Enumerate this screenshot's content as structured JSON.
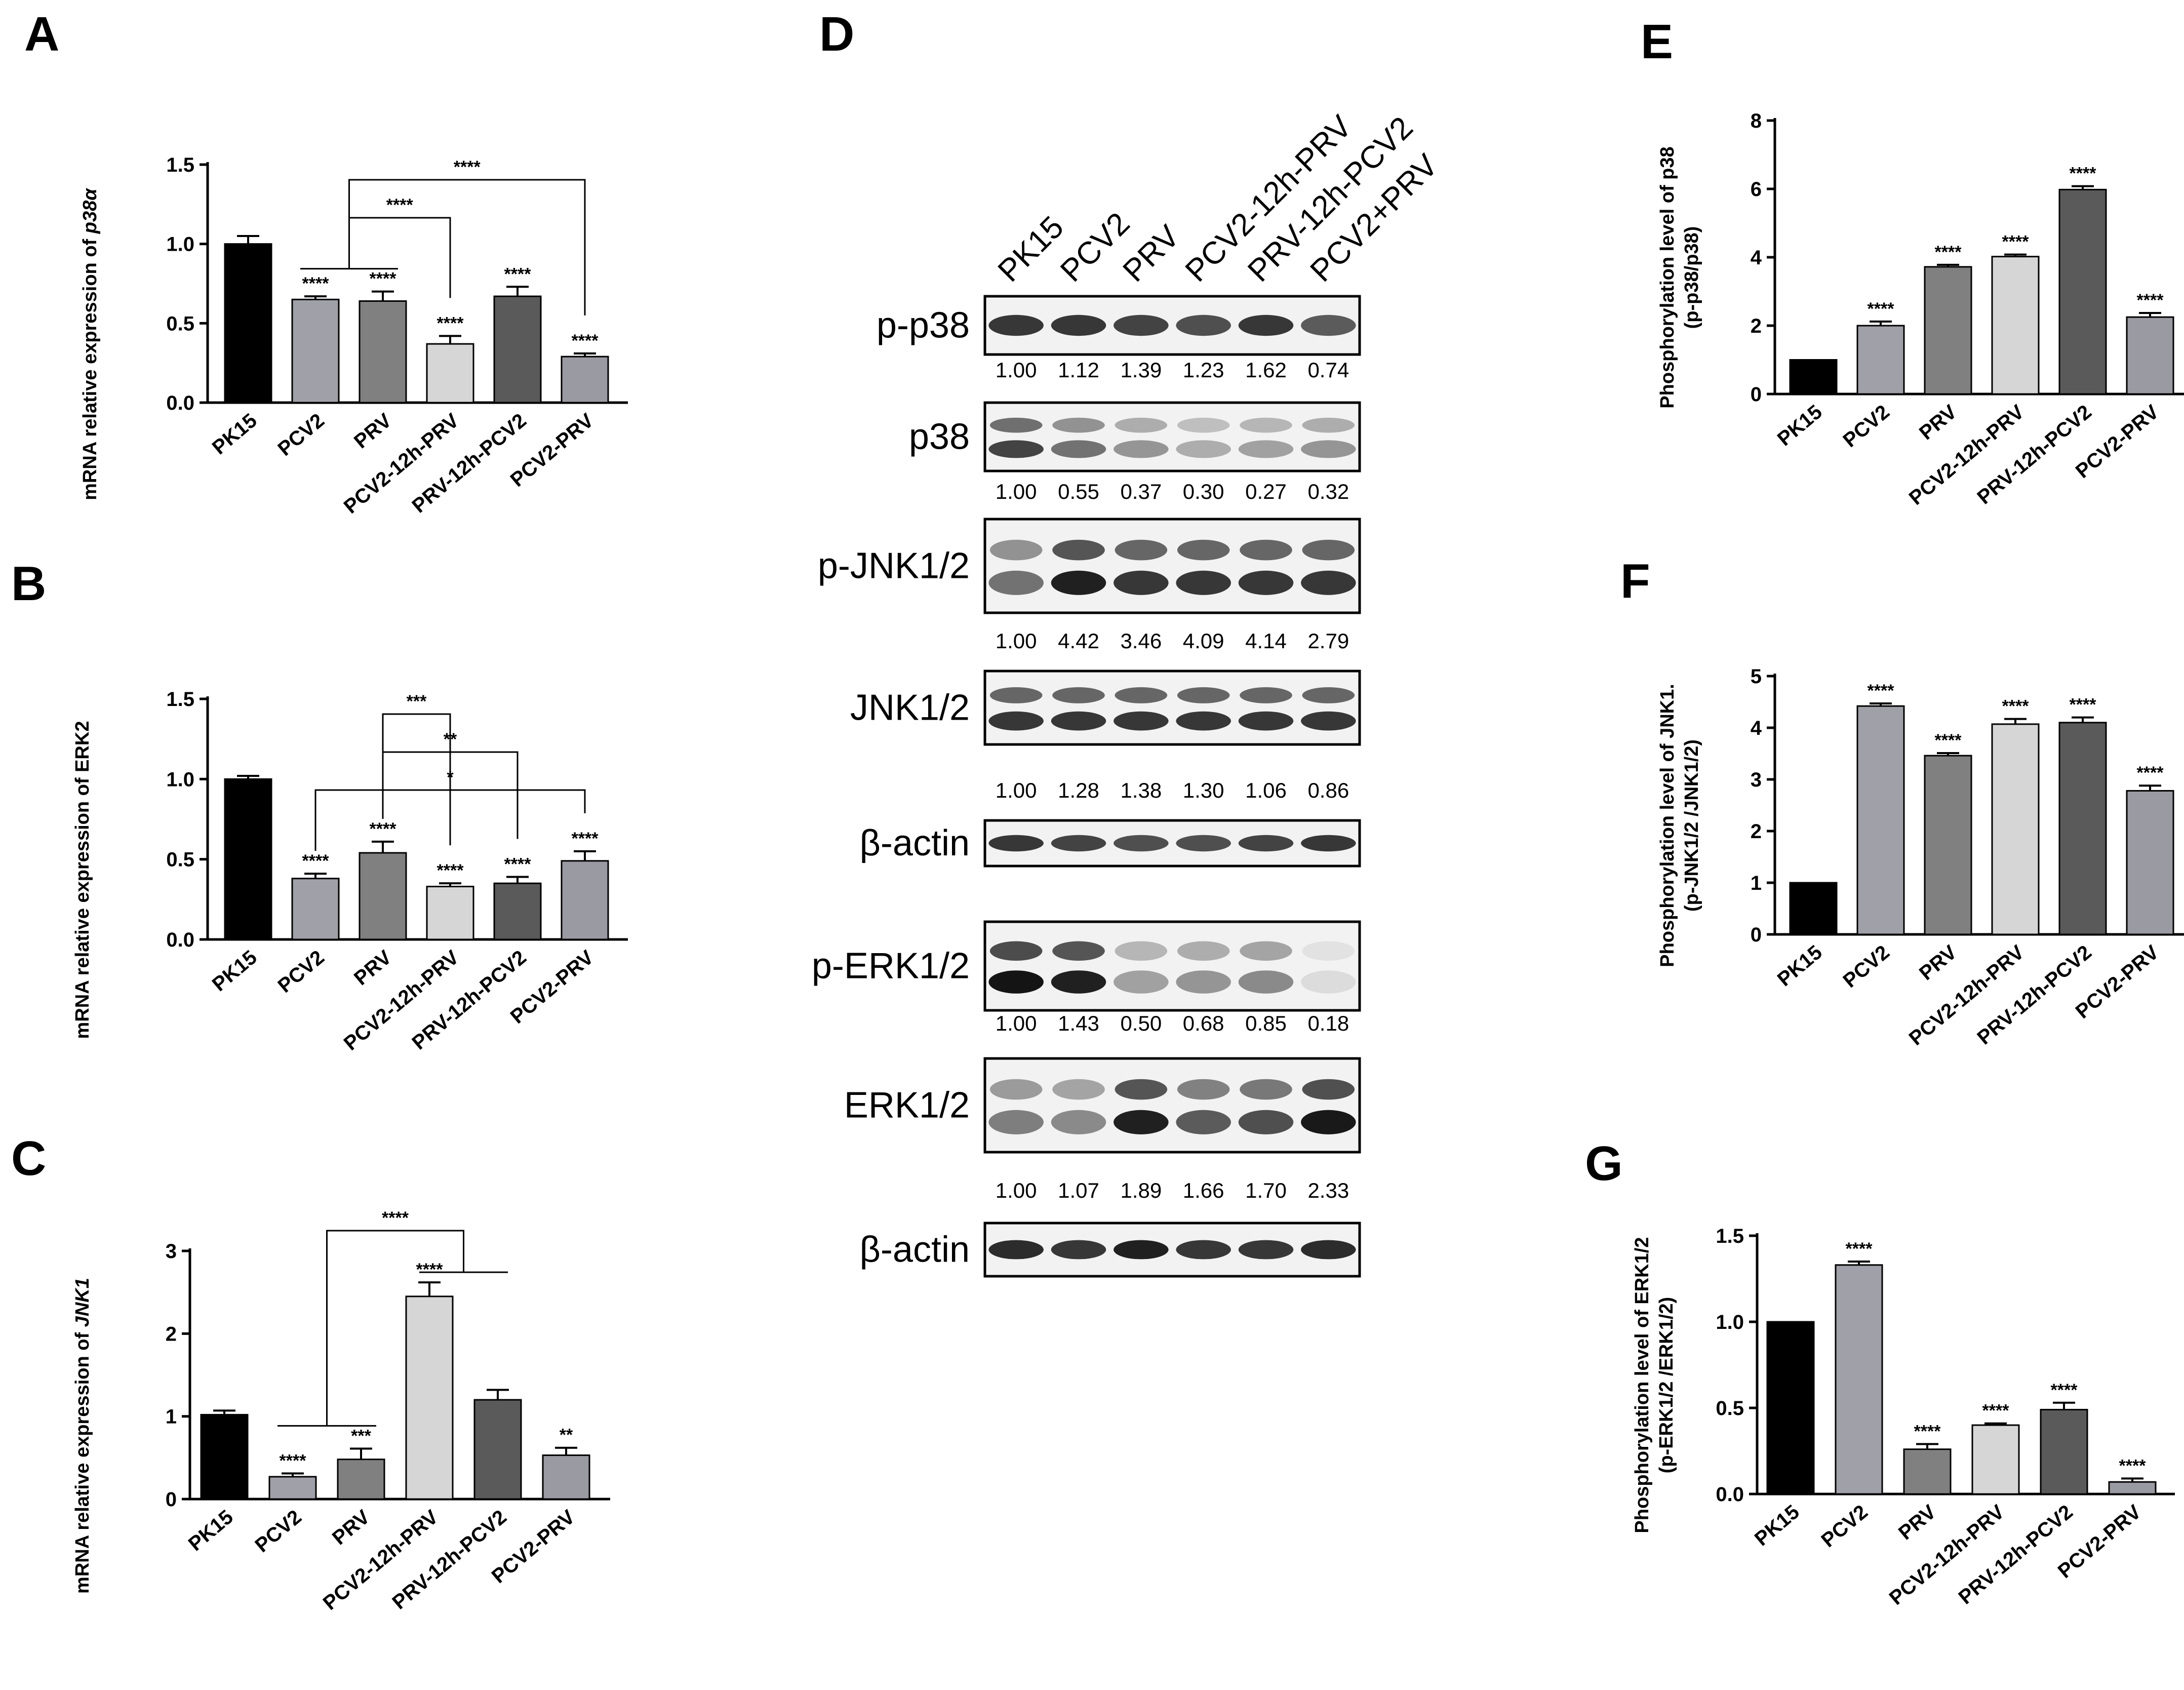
{
  "colors": {
    "PK15": "#000000",
    "PCV2": "#a0a0a8",
    "PRV": "#808080",
    "PCV2-12h-PRV": "#d6d6d6",
    "PRV-12h-PCV2": "#5a5a5a",
    "PCV2-PRV": "#9a9aa2",
    "PCV2+PRV": "#9a9aa2"
  },
  "chart_data": [
    {
      "id": "A",
      "panel": "A",
      "type": "bar",
      "categories": [
        "PK15",
        "PCV2",
        "PRV",
        "PCV2-12h-PRV",
        "PRV-12h-PCV2",
        "PCV2-PRV"
      ],
      "values": [
        1.0,
        0.65,
        0.64,
        0.37,
        0.67,
        0.29
      ],
      "errors": [
        0.05,
        0.02,
        0.06,
        0.05,
        0.06,
        0.02
      ],
      "sig": [
        "",
        "****",
        "****",
        "****",
        "****",
        "****"
      ],
      "ylabel_plain": "mRNA relative expression of ",
      "ylabel_italic": "p38α",
      "ylim": [
        0,
        1.5
      ],
      "yticks": [
        "0.0",
        "0.5",
        "1.0",
        "1.5"
      ],
      "ytick_values": [
        0,
        0.5,
        1,
        1.5
      ],
      "brackets": [
        {
          "from": [
            1,
            2
          ],
          "to": 3,
          "label": "****"
        },
        {
          "from": [
            1,
            2
          ],
          "to": 5,
          "label": "****"
        }
      ]
    },
    {
      "id": "B",
      "panel": "B",
      "type": "bar",
      "categories": [
        "PK15",
        "PCV2",
        "PRV",
        "PCV2-12h-PRV",
        "PRV-12h-PCV2",
        "PCV2-PRV"
      ],
      "values": [
        1.0,
        0.38,
        0.54,
        0.33,
        0.35,
        0.49
      ],
      "errors": [
        0.02,
        0.03,
        0.07,
        0.02,
        0.04,
        0.06
      ],
      "sig": [
        "",
        "****",
        "****",
        "****",
        "****",
        "****"
      ],
      "ylabel_plain": "mRNA relative expression of ERK2",
      "ylabel_italic": "",
      "ylim": [
        0,
        1.5
      ],
      "yticks": [
        "0.0",
        "0.5",
        "1.0",
        "1.5"
      ],
      "ytick_values": [
        0,
        0.5,
        1,
        1.5
      ],
      "brackets": [
        {
          "from": [
            1
          ],
          "to": 5,
          "label": "*"
        },
        {
          "from": [
            2
          ],
          "to": 4,
          "label": "**"
        },
        {
          "from": [
            2
          ],
          "to": 3,
          "label": "***"
        }
      ]
    },
    {
      "id": "C",
      "panel": "C",
      "type": "bar",
      "categories": [
        "PK15",
        "PCV2",
        "PRV",
        "PCV2-12h-PRV",
        "PRV-12h-PCV2",
        "PCV2-PRV"
      ],
      "values": [
        1.02,
        0.27,
        0.48,
        2.45,
        1.2,
        0.53
      ],
      "errors": [
        0.05,
        0.04,
        0.13,
        0.17,
        0.12,
        0.09
      ],
      "sig": [
        "",
        "****",
        "***",
        "****",
        "",
        "**"
      ],
      "ylabel_plain": "mRNA relative expression of ",
      "ylabel_italic": "JNK1",
      "ylim": [
        0,
        3
      ],
      "yticks": [
        "0",
        "1",
        "2",
        "3"
      ],
      "ytick_values": [
        0,
        1,
        2,
        3
      ],
      "brackets": [
        {
          "from": [
            1,
            2
          ],
          "to_group": [
            3,
            4
          ],
          "label": "****"
        }
      ]
    },
    {
      "id": "E",
      "panel": "E",
      "type": "bar",
      "categories": [
        "PK15",
        "PCV2",
        "PRV",
        "PCV2-12h-PRV",
        "PRV-12h-PCV2",
        "PCV2-PRV"
      ],
      "values": [
        1.0,
        2.0,
        3.72,
        4.02,
        5.98,
        2.25
      ],
      "errors": [
        0.0,
        0.12,
        0.06,
        0.06,
        0.1,
        0.12
      ],
      "sig": [
        "",
        "****",
        "****",
        "****",
        "****",
        "****"
      ],
      "ylabel_line1": "Phosphorylation level of p38",
      "ylabel_line2": "(p-p38/p38)",
      "ylim": [
        0,
        8
      ],
      "yticks": [
        "0",
        "2",
        "4",
        "6",
        "8"
      ],
      "ytick_values": [
        0,
        2,
        4,
        6,
        8
      ],
      "brackets": []
    },
    {
      "id": "F",
      "panel": "F",
      "type": "bar",
      "categories": [
        "PK15",
        "PCV2",
        "PRV",
        "PCV2-12h-PRV",
        "PRV-12h-PCV2",
        "PCV2-PRV"
      ],
      "values": [
        1.0,
        4.42,
        3.46,
        4.07,
        4.1,
        2.78
      ],
      "errors": [
        0.0,
        0.05,
        0.05,
        0.1,
        0.1,
        0.1
      ],
      "sig": [
        "",
        "****",
        "****",
        "****",
        "****",
        "****"
      ],
      "ylabel_line1": "Phosphorylation level of JNK1.",
      "ylabel_line2": "(p-JNK1/2 /JNK1/2)",
      "ylim": [
        0,
        5
      ],
      "yticks": [
        "0",
        "1",
        "2",
        "3",
        "4",
        "5"
      ],
      "ytick_values": [
        0,
        1,
        2,
        3,
        4,
        5
      ],
      "brackets": []
    },
    {
      "id": "G",
      "panel": "G",
      "type": "bar",
      "categories": [
        "PK15",
        "PCV2",
        "PRV",
        "PCV2-12h-PRV",
        "PRV-12h-PCV2",
        "PCV2-PRV"
      ],
      "values": [
        1.0,
        1.33,
        0.26,
        0.4,
        0.49,
        0.07
      ],
      "errors": [
        0.0,
        0.02,
        0.03,
        0.01,
        0.04,
        0.02
      ],
      "sig": [
        "",
        "****",
        "****",
        "****",
        "****",
        "****"
      ],
      "ylabel_line1": "Phosphorylation level of ERK1/2",
      "ylabel_line2": "(p-ERK1/2 /ERK1/2)",
      "ylim": [
        0,
        1.5
      ],
      "yticks": [
        "0.0",
        "0.5",
        "1.0",
        "1.5"
      ],
      "ytick_values": [
        0,
        0.5,
        1,
        1.5
      ],
      "brackets": []
    }
  ],
  "western_blot": {
    "panel": "D",
    "columns": [
      "PK15",
      "PCV2",
      "PRV",
      "PCV2-12h-PRV",
      "PRV-12h-PCV2",
      "PCV2+PRV"
    ],
    "rows": [
      {
        "label": "p-p38",
        "values": [
          "1.00",
          "1.12",
          "1.39",
          "1.23",
          "1.62",
          "0.74"
        ],
        "intensity": [
          0.85,
          0.85,
          0.8,
          0.75,
          0.85,
          0.7
        ],
        "bands": 1
      },
      {
        "label": "p38",
        "values": [
          "1.00",
          "0.55",
          "0.37",
          "0.30",
          "0.27",
          "0.32"
        ],
        "intensity": [
          0.8,
          0.6,
          0.45,
          0.35,
          0.4,
          0.45
        ],
        "bands": 2
      },
      {
        "label": "p-JNK1/2",
        "values": [
          "1.00",
          "4.42",
          "3.46",
          "4.09",
          "4.14",
          "2.79"
        ],
        "intensity": [
          0.6,
          0.95,
          0.85,
          0.85,
          0.85,
          0.85
        ],
        "bands": 2
      },
      {
        "label": "JNK1/2",
        "values": [
          "1.00",
          "1.28",
          "1.38",
          "1.30",
          "1.06",
          "0.86"
        ],
        "intensity": [
          0.85,
          0.85,
          0.85,
          0.85,
          0.85,
          0.85
        ],
        "bands": 2
      },
      {
        "label": "β-actin",
        "values": [],
        "intensity": [
          0.85,
          0.8,
          0.75,
          0.75,
          0.8,
          0.85
        ],
        "bands": 1
      },
      {
        "label": "p-ERK1/2",
        "values": [
          "1.00",
          "1.43",
          "0.50",
          "0.68",
          "0.85",
          "0.18"
        ],
        "intensity": [
          1.0,
          0.95,
          0.4,
          0.45,
          0.5,
          0.15
        ],
        "bands": 2
      },
      {
        "label": "ERK1/2",
        "values": [
          "1.00",
          "1.07",
          "1.89",
          "1.66",
          "1.70",
          "2.33"
        ],
        "intensity": [
          0.55,
          0.5,
          0.95,
          0.7,
          0.75,
          0.98
        ],
        "bands": 2
      },
      {
        "label": "β-actin",
        "values": [],
        "intensity": [
          0.9,
          0.85,
          0.95,
          0.85,
          0.85,
          0.9
        ],
        "bands": 1
      }
    ]
  }
}
